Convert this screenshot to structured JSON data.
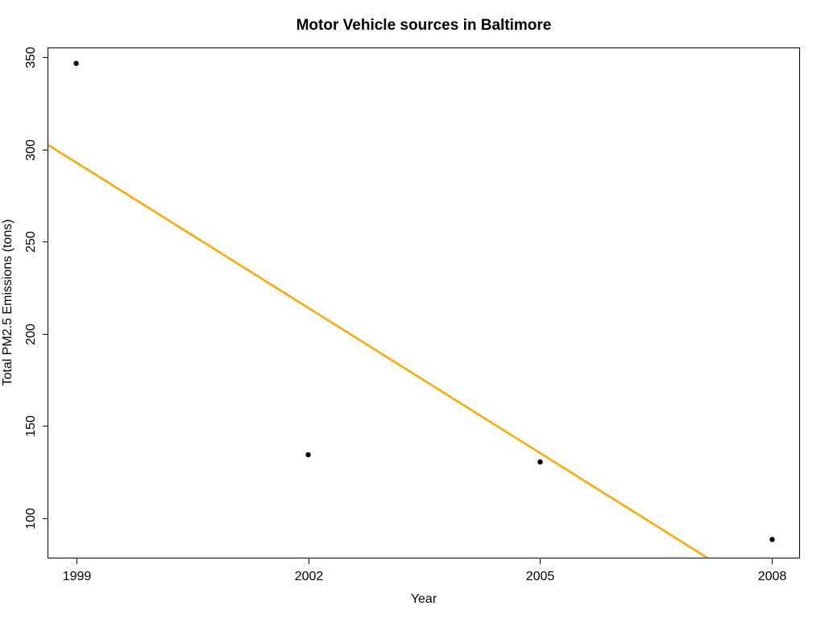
{
  "chart_data": {
    "type": "scatter",
    "title": "Motor Vehicle sources in Baltimore",
    "xlabel": "Year",
    "ylabel": "Total PM2.5 Emissions (tons)",
    "x_ticks": [
      1999,
      2002,
      2005,
      2008
    ],
    "y_ticks": [
      100,
      150,
      200,
      250,
      300,
      350
    ],
    "xlim": [
      1998.64,
      2008.36
    ],
    "ylim": [
      78,
      355
    ],
    "grid": false,
    "series": [
      {
        "x": [
          1999,
          2002,
          2005,
          2008
        ],
        "y": [
          346.8,
          134.3,
          130.4,
          88.3
        ],
        "color": "#000000"
      }
    ],
    "trend_line": {
      "intercept_at_1999": 293.0,
      "slope_per_year": -26.3,
      "color": "#ffa500"
    }
  }
}
